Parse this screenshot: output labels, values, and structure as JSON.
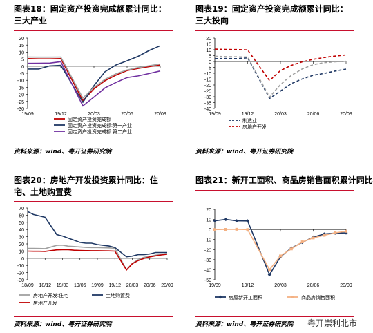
{
  "watermark": "粤开崇利北市",
  "chart_data": [
    {
      "type": "line",
      "title": "图表18：固定资产投资完成额累计同比：三大产业",
      "source": "资料来源：wind、粤开证券研究院",
      "xlabel": "",
      "ylabel": "",
      "x_ticks": [
        "19/09",
        "19/12",
        "20/03",
        "20/06",
        "20/09"
      ],
      "ylim": [
        -30,
        20
      ],
      "y_ticks": [
        20,
        15,
        10,
        5,
        0,
        -5,
        -10,
        -15,
        -20,
        -25,
        -30
      ],
      "grid": false,
      "legend_position": "bottom",
      "series": [
        {
          "name": "固定资产投资完成额",
          "color": "#c00000",
          "x": [
            "2019-09",
            "2019-10",
            "2019-11",
            "2019-12",
            "2020-02",
            "2020-03",
            "2020-04",
            "2020-05",
            "2020-06",
            "2020-07",
            "2020-08",
            "2020-09"
          ],
          "values": [
            5.4,
            5.2,
            5.2,
            5.4,
            -24.5,
            -16.1,
            -10.3,
            -6.3,
            -3.1,
            -1.6,
            -0.3,
            0.8
          ]
        },
        {
          "name": "固定资产投资完成额:第一产业",
          "color": "#1f3864",
          "x": [
            "2019-09",
            "2019-10",
            "2019-11",
            "2019-12",
            "2020-02",
            "2020-03",
            "2020-04",
            "2020-05",
            "2020-06",
            "2020-07",
            "2020-08",
            "2020-09"
          ],
          "values": [
            -2.0,
            -2.0,
            0.2,
            0.6,
            -25.6,
            -13.8,
            -3.9,
            0.9,
            3.8,
            7.0,
            11.2,
            14.5
          ]
        },
        {
          "name": "固定资产投资完成额:第二产业",
          "color": "#7030a0",
          "x": [
            "2019-09",
            "2019-10",
            "2019-11",
            "2019-12",
            "2020-02",
            "2020-03",
            "2020-04",
            "2020-05",
            "2020-06",
            "2020-07",
            "2020-08",
            "2020-09"
          ],
          "values": [
            2.0,
            2.1,
            2.2,
            3.2,
            -28.2,
            -21.9,
            -15.4,
            -11.5,
            -8.1,
            -6.9,
            -5.2,
            -3.4
          ]
        },
        {
          "name": "",
          "color": "#a0a0a0",
          "x": [
            "2019-09",
            "2019-10",
            "2019-11",
            "2019-12",
            "2020-02",
            "2020-03",
            "2020-04",
            "2020-05",
            "2020-06",
            "2020-07",
            "2020-08",
            "2020-09"
          ],
          "values": [
            6.5,
            6.4,
            6.4,
            6.5,
            -22.6,
            -15.1,
            -9.3,
            -5.4,
            -2.7,
            -1.0,
            0.3,
            1.6
          ]
        }
      ]
    },
    {
      "type": "line",
      "title": "图表19：固定资产投资完成额累计同比：三大投向",
      "source": "资料来源：wind、粤开证券研究院",
      "xlabel": "",
      "ylabel": "",
      "x_ticks": [
        "19/09",
        "19/12",
        "20/03",
        "20/06",
        "20/09"
      ],
      "ylim": [
        -40,
        20
      ],
      "y_ticks": [
        20,
        15,
        10,
        5,
        0,
        -5,
        -10,
        -15,
        -20,
        -25,
        -30,
        -35,
        -40
      ],
      "grid": false,
      "legend_position": "bottom",
      "series": [
        {
          "name": "制造业",
          "color": "#1f3864",
          "dash": true,
          "x": [
            "2019-09",
            "2019-10",
            "2019-11",
            "2019-12",
            "2020-02",
            "2020-03",
            "2020-04",
            "2020-05",
            "2020-06",
            "2020-07",
            "2020-08",
            "2020-09"
          ],
          "values": [
            2.5,
            2.6,
            2.5,
            3.1,
            -31.5,
            -25.2,
            -18.8,
            -14.8,
            -11.7,
            -10.2,
            -8.1,
            -6.5
          ]
        },
        {
          "name": "房地产开发",
          "color": "#c00000",
          "dash": true,
          "x": [
            "2019-09",
            "2019-10",
            "2019-11",
            "2019-12",
            "2020-02",
            "2020-03",
            "2020-04",
            "2020-05",
            "2020-06",
            "2020-07",
            "2020-08",
            "2020-09"
          ],
          "values": [
            10.5,
            10.3,
            10.2,
            9.9,
            -16.3,
            -7.7,
            -3.3,
            -0.3,
            1.9,
            3.4,
            4.6,
            5.6
          ]
        },
        {
          "name": "",
          "color": "#a0a0a0",
          "dash": true,
          "x": [
            "2019-09",
            "2019-10",
            "2019-11",
            "2019-12",
            "2020-02",
            "2020-03",
            "2020-04",
            "2020-05",
            "2020-06",
            "2020-07",
            "2020-08",
            "2020-09"
          ],
          "values": [
            4.5,
            4.2,
            4.0,
            3.8,
            -30.3,
            -19.7,
            -11.8,
            -6.3,
            -2.7,
            -1.0,
            -0.3,
            0.2
          ]
        }
      ]
    },
    {
      "type": "line",
      "title": "图表20：房地产开发投资累计同比：住宅、土地购置费",
      "source": "资料来源：wind、粤开证券研究院",
      "xlabel": "",
      "ylabel": "",
      "x_ticks": [
        "18/09",
        "18/12",
        "19/03",
        "19/06",
        "19/09",
        "19/12",
        "20/03",
        "20/06",
        "20/09"
      ],
      "ylim": [
        -30,
        70
      ],
      "y_ticks": [
        70,
        60,
        50,
        40,
        30,
        20,
        10,
        0,
        -10,
        -20,
        -30
      ],
      "grid": false,
      "legend_position": "bottom",
      "series": [
        {
          "name": "房地产开发:住宅",
          "color": "#a0a0a0",
          "x": [
            "2018-09",
            "2018-10",
            "2018-11",
            "2018-12",
            "2019-02",
            "2019-03",
            "2019-04",
            "2019-05",
            "2019-06",
            "2019-07",
            "2019-08",
            "2019-09",
            "2019-10",
            "2019-11",
            "2019-12",
            "2020-02",
            "2020-03",
            "2020-04",
            "2020-05",
            "2020-06",
            "2020-07",
            "2020-08",
            "2020-09"
          ],
          "values": [
            13.7,
            13.7,
            13.6,
            13.4,
            18.0,
            18.3,
            16.8,
            16.3,
            15.8,
            15.1,
            14.9,
            14.9,
            14.6,
            14.4,
            13.9,
            -16.0,
            -7.2,
            -2.0,
            1.3,
            2.6,
            4.3,
            5.4,
            6.4
          ]
        },
        {
          "name": "土地购置费",
          "color": "#1f3864",
          "x": [
            "2018-09",
            "2018-10",
            "2018-11",
            "2018-12",
            "2019-02",
            "2019-03",
            "2019-04",
            "2019-05",
            "2019-06",
            "2019-07",
            "2019-08",
            "2019-09",
            "2019-10",
            "2019-11",
            "2019-12",
            "2020-02",
            "2020-03",
            "2020-04",
            "2020-05",
            "2020-06",
            "2020-07",
            "2020-08",
            "2020-09"
          ],
          "values": [
            65.0,
            61.0,
            59.0,
            57.0,
            33.0,
            31.0,
            28.0,
            25.0,
            22.0,
            21.0,
            21.0,
            19.0,
            18.0,
            17.0,
            15.0,
            2.0,
            3.0,
            5.0,
            5.0,
            6.0,
            8.0,
            8.0,
            8.0
          ]
        },
        {
          "name": "房地产开发",
          "color": "#c00000",
          "x": [
            "2018-09",
            "2018-10",
            "2018-11",
            "2018-12",
            "2019-02",
            "2019-03",
            "2019-04",
            "2019-05",
            "2019-06",
            "2019-07",
            "2019-08",
            "2019-09",
            "2019-10",
            "2019-11",
            "2019-12",
            "2020-02",
            "2020-03",
            "2020-04",
            "2020-05",
            "2020-06",
            "2020-07",
            "2020-08",
            "2020-09"
          ],
          "values": [
            9.9,
            9.7,
            9.7,
            9.5,
            11.6,
            11.8,
            11.9,
            11.2,
            10.9,
            10.6,
            10.5,
            10.5,
            10.3,
            10.2,
            9.9,
            -16.3,
            -7.7,
            -3.3,
            -0.3,
            1.9,
            3.4,
            4.6,
            5.6
          ]
        }
      ]
    },
    {
      "type": "line",
      "title": "图表21：新开工面积、商品房销售面积累计同比",
      "source": "资料来源：wind、粤开证券研究院",
      "xlabel": "",
      "ylabel": "",
      "x_ticks": [
        "19/09",
        "19/12",
        "20/03",
        "20/06",
        "20/09"
      ],
      "ylim": [
        -50,
        20
      ],
      "y_ticks": [
        20,
        10,
        0,
        -10,
        -20,
        -30,
        -40,
        -50
      ],
      "grid": false,
      "legend_position": "bottom",
      "series": [
        {
          "name": "房屋新开工面积",
          "color": "#1f3864",
          "marker": "diamond",
          "x": [
            "2019-09",
            "2019-10",
            "2019-11",
            "2019-12",
            "2020-02",
            "2020-03",
            "2020-04",
            "2020-05",
            "2020-06",
            "2020-07",
            "2020-08",
            "2020-09"
          ],
          "values": [
            8.6,
            10.0,
            8.6,
            8.5,
            -44.9,
            -27.2,
            -18.4,
            -12.8,
            -7.6,
            -4.5,
            -3.6,
            -3.4
          ]
        },
        {
          "name": "商品房销售面积",
          "color": "#f4b183",
          "marker": "square",
          "x": [
            "2019-09",
            "2019-10",
            "2019-11",
            "2019-12",
            "2020-02",
            "2020-03",
            "2020-04",
            "2020-05",
            "2020-06",
            "2020-07",
            "2020-08",
            "2020-09"
          ],
          "values": [
            -0.1,
            0.1,
            0.2,
            -0.1,
            -39.9,
            -26.3,
            -19.3,
            -12.3,
            -8.4,
            -5.8,
            -3.3,
            -1.8
          ]
        }
      ]
    }
  ]
}
